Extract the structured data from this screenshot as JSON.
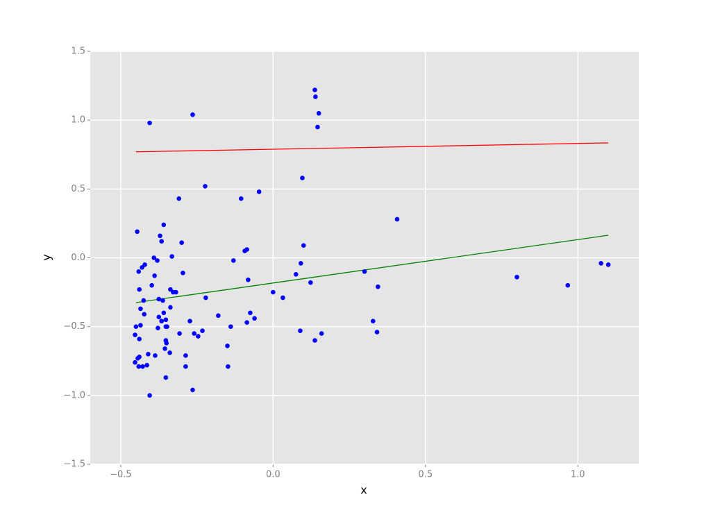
{
  "chart_data": {
    "type": "scatter",
    "xlabel": "x",
    "ylabel": "y",
    "xlim": [
      -0.6,
      1.2
    ],
    "ylim": [
      -1.5,
      1.5
    ],
    "xticks": [
      {
        "value": -0.5,
        "label": "−0.5"
      },
      {
        "value": 0.0,
        "label": "0.0"
      },
      0.5,
      {
        "value": 1.0,
        "label": "1.0"
      }
    ],
    "yticks": [
      {
        "value": -1.5,
        "label": "−1.5"
      },
      {
        "value": -1.0,
        "label": "−1.0"
      },
      {
        "value": -0.5,
        "label": "−0.5"
      },
      {
        "value": 0.0,
        "label": "0.0"
      },
      0.5,
      {
        "value": 1.0,
        "label": "1.0"
      },
      1.5
    ],
    "grid": true,
    "color": "#0000ff",
    "x": [
      -0.405,
      -0.264,
      0.137,
      0.139,
      0.15,
      0.146,
      -0.223,
      -0.046,
      -0.105,
      -0.309,
      0.096,
      0.407,
      -0.446,
      -0.359,
      -0.371,
      -0.366,
      -0.3,
      -0.086,
      -0.093,
      0.1,
      -0.391,
      -0.332,
      -0.38,
      -0.13,
      -0.421,
      -0.43,
      -0.441,
      -0.296,
      0.091,
      1.076,
      1.1,
      0.3,
      -0.389,
      0.075,
      0.8,
      -0.082,
      0.967,
      0.123,
      0.344,
      -0.398,
      -0.439,
      -0.337,
      -0.328,
      -0.319,
      0.0,
      0.032,
      -0.221,
      -0.375,
      -0.362,
      -0.425,
      -0.435,
      -0.337,
      -0.359,
      -0.423,
      -0.18,
      -0.075,
      -0.061,
      -0.375,
      -0.366,
      -0.352,
      -0.273,
      -0.086,
      0.328,
      -0.45,
      -0.435,
      -0.378,
      -0.348,
      -0.352,
      -0.139,
      -0.232,
      -0.307,
      -0.259,
      -0.246,
      0.089,
      0.159,
      0.341,
      -0.453,
      -0.439,
      -0.352,
      -0.35,
      0.137,
      -0.15,
      -0.355,
      -0.339,
      -0.41,
      -0.387,
      -0.287,
      -0.439,
      -0.444,
      -0.453,
      -0.414,
      -0.287,
      -0.148,
      -0.441,
      -0.428,
      -0.352,
      -0.264,
      -0.405
    ],
    "values": [
      0.98,
      1.04,
      1.22,
      1.17,
      1.05,
      0.95,
      0.52,
      0.48,
      0.43,
      0.43,
      0.58,
      0.28,
      0.19,
      0.24,
      0.16,
      0.12,
      0.11,
      0.06,
      0.05,
      0.09,
      0.0,
      0.01,
      -0.02,
      -0.02,
      -0.05,
      -0.07,
      -0.1,
      -0.11,
      -0.04,
      -0.04,
      -0.05,
      -0.1,
      -0.13,
      -0.12,
      -0.14,
      -0.16,
      -0.2,
      -0.18,
      -0.21,
      -0.2,
      -0.23,
      -0.23,
      -0.25,
      -0.25,
      -0.25,
      -0.29,
      -0.29,
      -0.3,
      -0.31,
      -0.31,
      -0.37,
      -0.36,
      -0.4,
      -0.41,
      -0.42,
      -0.4,
      -0.44,
      -0.43,
      -0.46,
      -0.45,
      -0.46,
      -0.47,
      -0.46,
      -0.5,
      -0.49,
      -0.51,
      -0.5,
      -0.5,
      -0.5,
      -0.53,
      -0.55,
      -0.55,
      -0.57,
      -0.53,
      -0.55,
      -0.54,
      -0.56,
      -0.59,
      -0.6,
      -0.62,
      -0.6,
      -0.64,
      -0.66,
      -0.69,
      -0.7,
      -0.71,
      -0.71,
      -0.72,
      -0.73,
      -0.76,
      -0.78,
      -0.79,
      -0.79,
      -0.79,
      -0.79,
      -0.87,
      -0.96,
      -1.0
    ],
    "lines": [
      {
        "color": "#ff0000",
        "x": [
          -0.45,
          1.1
        ],
        "values": [
          0.77,
          0.835
        ]
      },
      {
        "color": "#008000",
        "x": [
          -0.45,
          1.1
        ],
        "values": [
          -0.325,
          0.164
        ]
      }
    ]
  }
}
